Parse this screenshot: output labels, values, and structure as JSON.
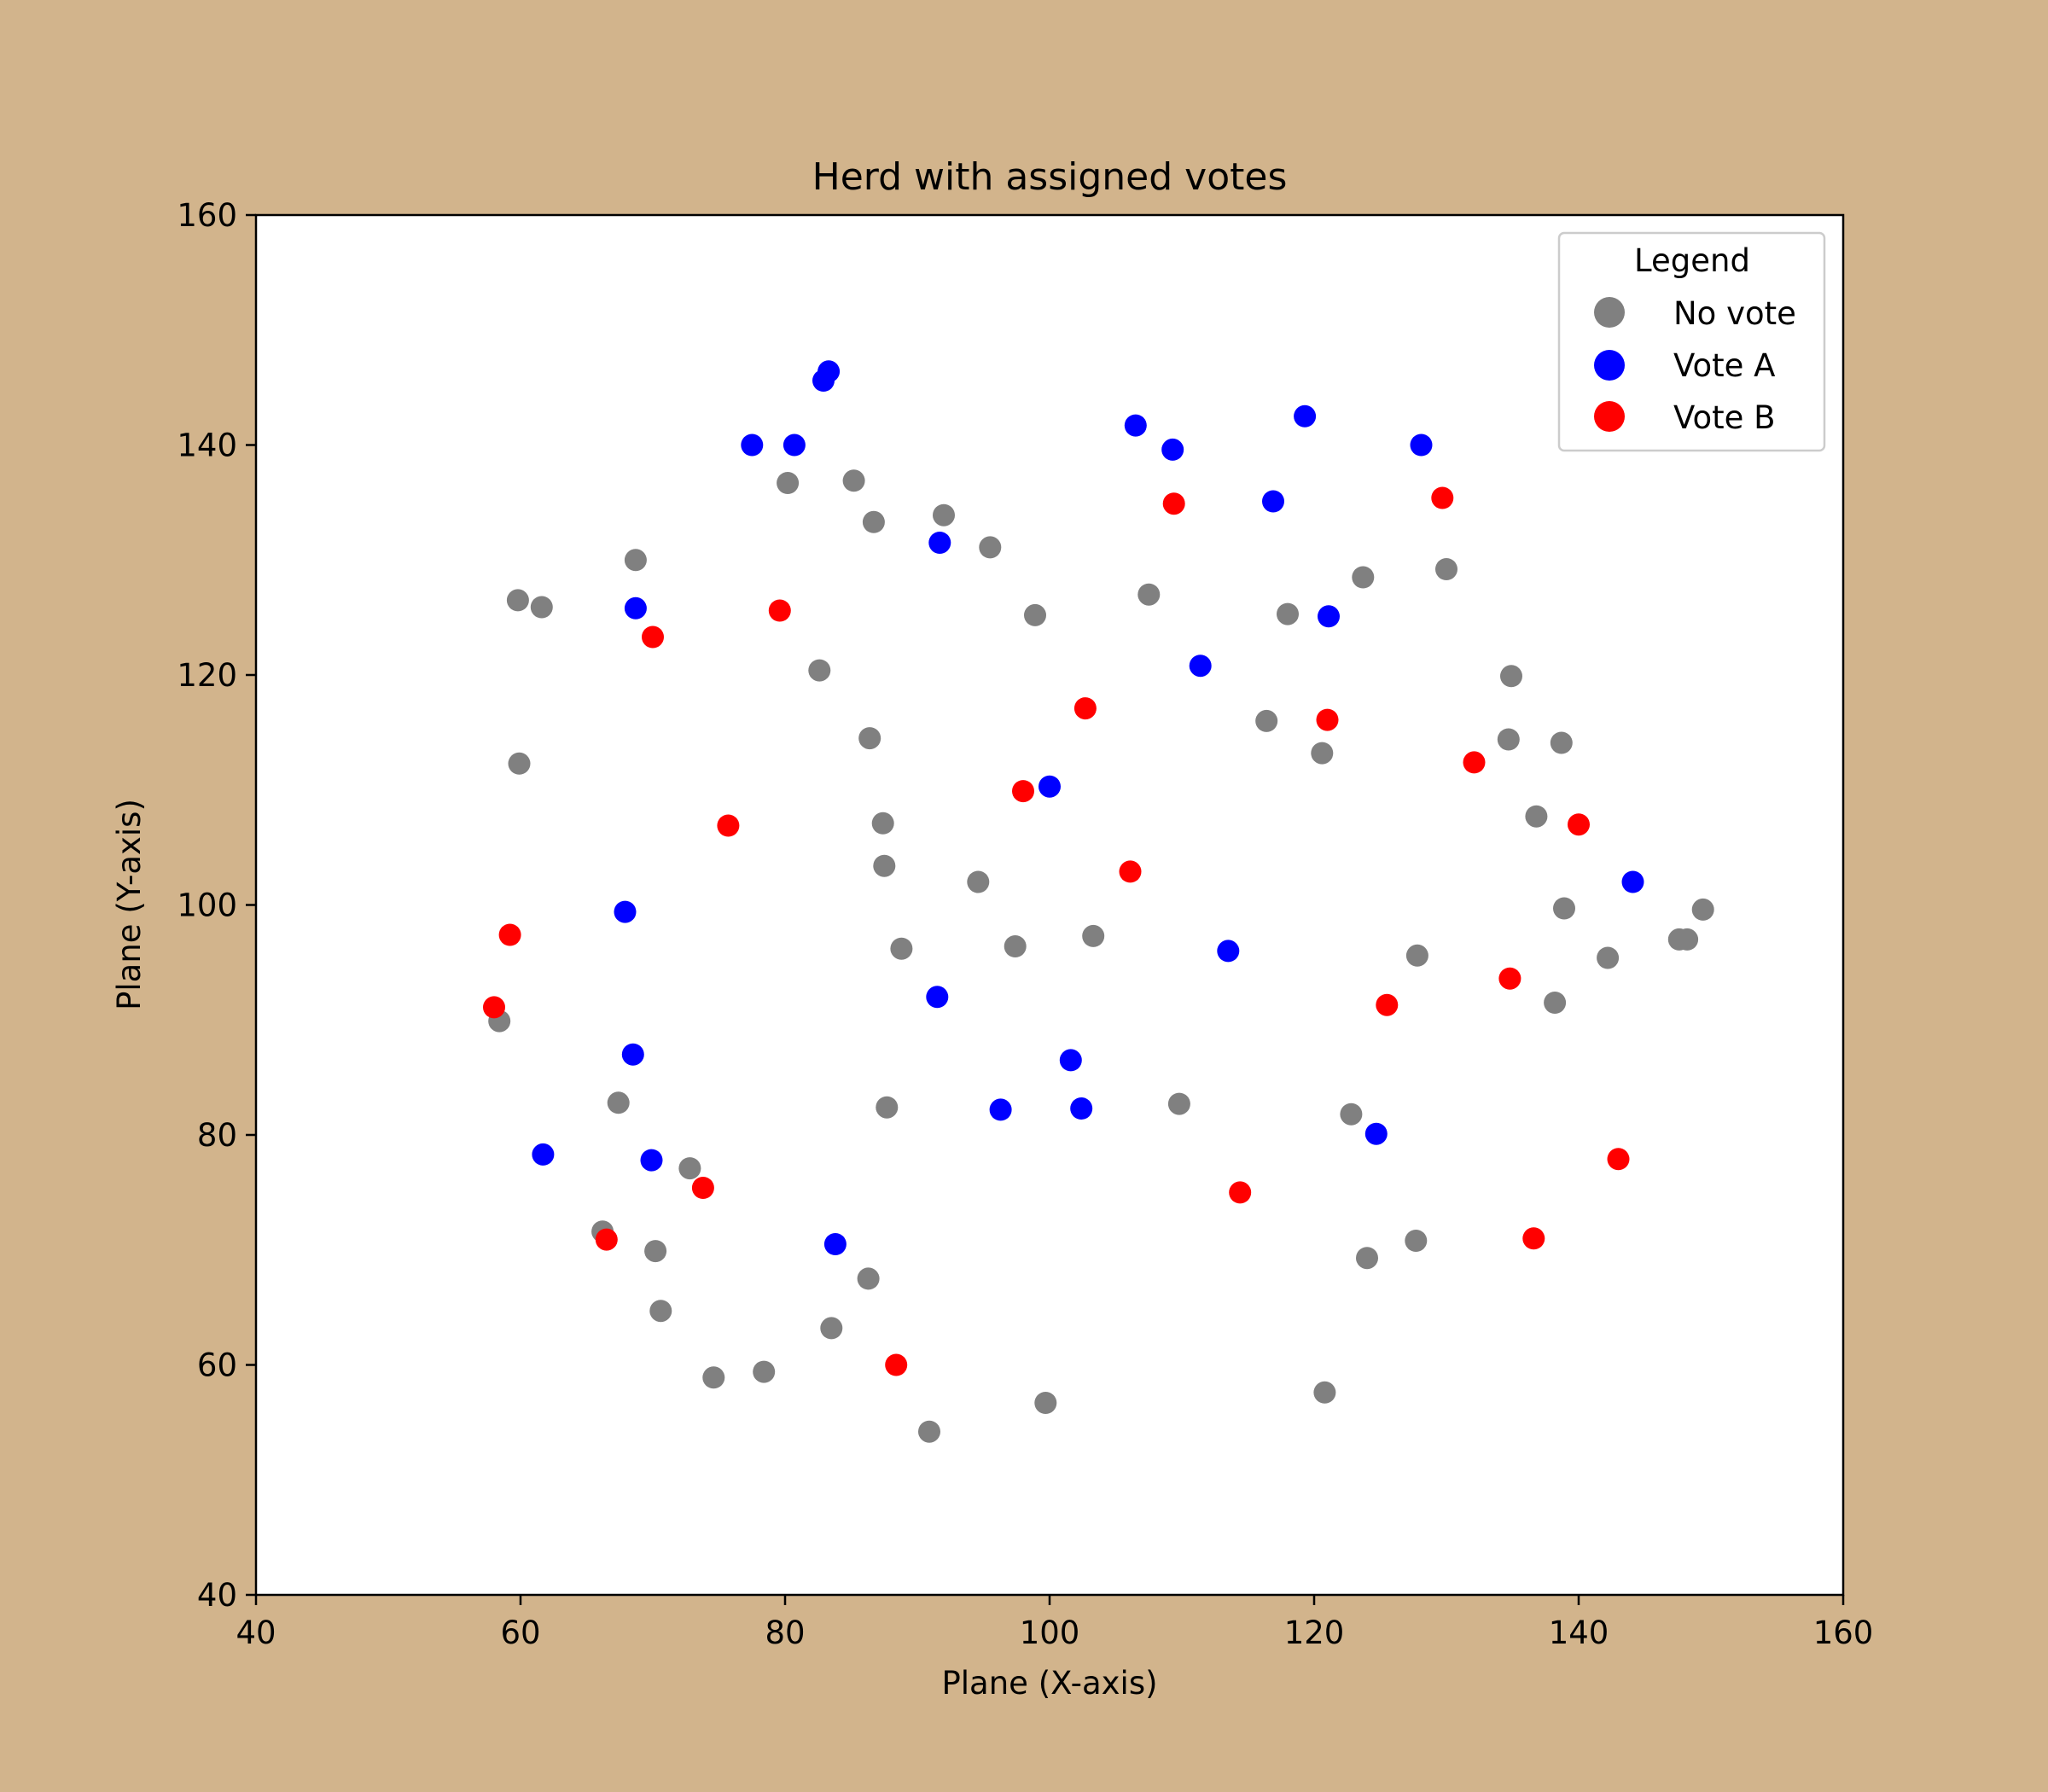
{
  "chart_data": {
    "type": "scatter",
    "title": "Herd with assigned votes",
    "xlabel": "Plane (X-axis)",
    "ylabel": "Plane (Y-axis)",
    "xlim": [
      40,
      160
    ],
    "ylim": [
      40,
      160
    ],
    "xticks": [
      40,
      60,
      80,
      100,
      120,
      140,
      160
    ],
    "yticks": [
      40,
      60,
      80,
      100,
      120,
      140,
      160
    ],
    "grid": false,
    "legend": {
      "title": "Legend",
      "placement": "top-right"
    },
    "series": [
      {
        "name": "No vote",
        "color": "#808080",
        "points": [
          [
            80.2,
            136.7
          ],
          [
            85.2,
            136.9
          ],
          [
            86.7,
            133.3
          ],
          [
            92.0,
            133.9
          ],
          [
            95.5,
            131.1
          ],
          [
            68.7,
            130.0
          ],
          [
            59.8,
            126.5
          ],
          [
            61.6,
            125.9
          ],
          [
            82.6,
            120.4
          ],
          [
            98.9,
            125.2
          ],
          [
            107.5,
            127.0
          ],
          [
            118.0,
            125.3
          ],
          [
            123.7,
            128.5
          ],
          [
            130.0,
            129.2
          ],
          [
            86.4,
            114.5
          ],
          [
            59.9,
            112.3
          ],
          [
            116.4,
            116.0
          ],
          [
            120.6,
            113.2
          ],
          [
            134.9,
            119.9
          ],
          [
            134.7,
            114.4
          ],
          [
            138.7,
            114.1
          ],
          [
            136.8,
            107.7
          ],
          [
            87.4,
            107.1
          ],
          [
            87.5,
            103.4
          ],
          [
            94.6,
            102.0
          ],
          [
            138.9,
            99.7
          ],
          [
            149.4,
            99.6
          ],
          [
            147.6,
            97.0
          ],
          [
            148.2,
            97.0
          ],
          [
            142.2,
            95.4
          ],
          [
            127.8,
            95.6
          ],
          [
            138.2,
            91.5
          ],
          [
            88.8,
            96.2
          ],
          [
            97.4,
            96.4
          ],
          [
            103.3,
            97.3
          ],
          [
            58.4,
            89.9
          ],
          [
            67.4,
            82.8
          ],
          [
            87.7,
            82.4
          ],
          [
            109.8,
            82.7
          ],
          [
            122.8,
            81.8
          ],
          [
            72.8,
            77.1
          ],
          [
            66.2,
            71.6
          ],
          [
            70.2,
            69.9
          ],
          [
            70.6,
            64.7
          ],
          [
            86.3,
            67.5
          ],
          [
            83.5,
            63.2
          ],
          [
            74.6,
            58.9
          ],
          [
            78.4,
            59.4
          ],
          [
            90.9,
            54.2
          ],
          [
            99.7,
            56.7
          ],
          [
            120.8,
            57.6
          ],
          [
            124.0,
            69.3
          ],
          [
            127.7,
            70.8
          ]
        ]
      },
      {
        "name": "Vote A",
        "color": "#0000ff",
        "points": [
          [
            83.3,
            146.4
          ],
          [
            82.9,
            145.6
          ],
          [
            77.5,
            140.0
          ],
          [
            80.7,
            140.0
          ],
          [
            91.7,
            131.5
          ],
          [
            68.7,
            125.8
          ],
          [
            106.5,
            141.7
          ],
          [
            109.3,
            139.6
          ],
          [
            119.3,
            142.5
          ],
          [
            128.1,
            140.0
          ],
          [
            116.9,
            135.1
          ],
          [
            121.1,
            125.1
          ],
          [
            111.4,
            120.8
          ],
          [
            100.0,
            110.3
          ],
          [
            144.1,
            102.0
          ],
          [
            67.9,
            99.4
          ],
          [
            113.5,
            96.0
          ],
          [
            91.5,
            92.0
          ],
          [
            68.5,
            87.0
          ],
          [
            101.6,
            86.5
          ],
          [
            96.3,
            82.2
          ],
          [
            102.4,
            82.3
          ],
          [
            124.7,
            80.1
          ],
          [
            61.7,
            78.3
          ],
          [
            69.9,
            77.8
          ],
          [
            83.8,
            70.5
          ]
        ]
      },
      {
        "name": "Vote B",
        "color": "#ff0000",
        "points": [
          [
            109.4,
            134.9
          ],
          [
            129.7,
            135.4
          ],
          [
            79.6,
            125.6
          ],
          [
            70.0,
            123.3
          ],
          [
            102.7,
            117.1
          ],
          [
            121.0,
            116.1
          ],
          [
            132.1,
            112.4
          ],
          [
            98.0,
            109.9
          ],
          [
            75.7,
            106.9
          ],
          [
            140.0,
            107.0
          ],
          [
            106.1,
            102.9
          ],
          [
            59.2,
            97.4
          ],
          [
            134.8,
            93.6
          ],
          [
            125.5,
            91.3
          ],
          [
            58.0,
            91.1
          ],
          [
            73.8,
            75.4
          ],
          [
            114.4,
            75.0
          ],
          [
            143.0,
            77.9
          ],
          [
            136.6,
            71.0
          ],
          [
            66.5,
            70.9
          ],
          [
            88.4,
            60.0
          ]
        ]
      }
    ]
  }
}
